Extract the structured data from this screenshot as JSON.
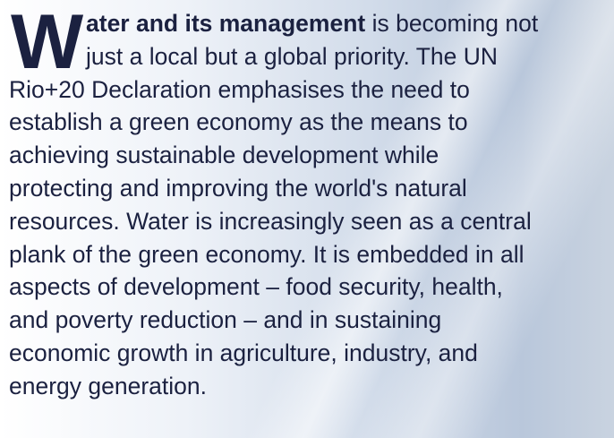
{
  "drop_cap": "W",
  "lead": "ater and its management",
  "lines": [
    "is becoming not",
    "just a local but a global priority. The UN",
    "Rio+20 Declaration emphasises the need to",
    "establish a green economy as the means to",
    "achieving sustainable development while",
    "protecting and improving the world's natural",
    "resources. Water is increasingly seen as a central",
    "plank of the green economy. It is embedded in all",
    "aspects of development – food security, health,",
    "and poverty reduction – and in sustaining",
    "economic growth in agriculture, industry, and",
    "energy generation."
  ]
}
